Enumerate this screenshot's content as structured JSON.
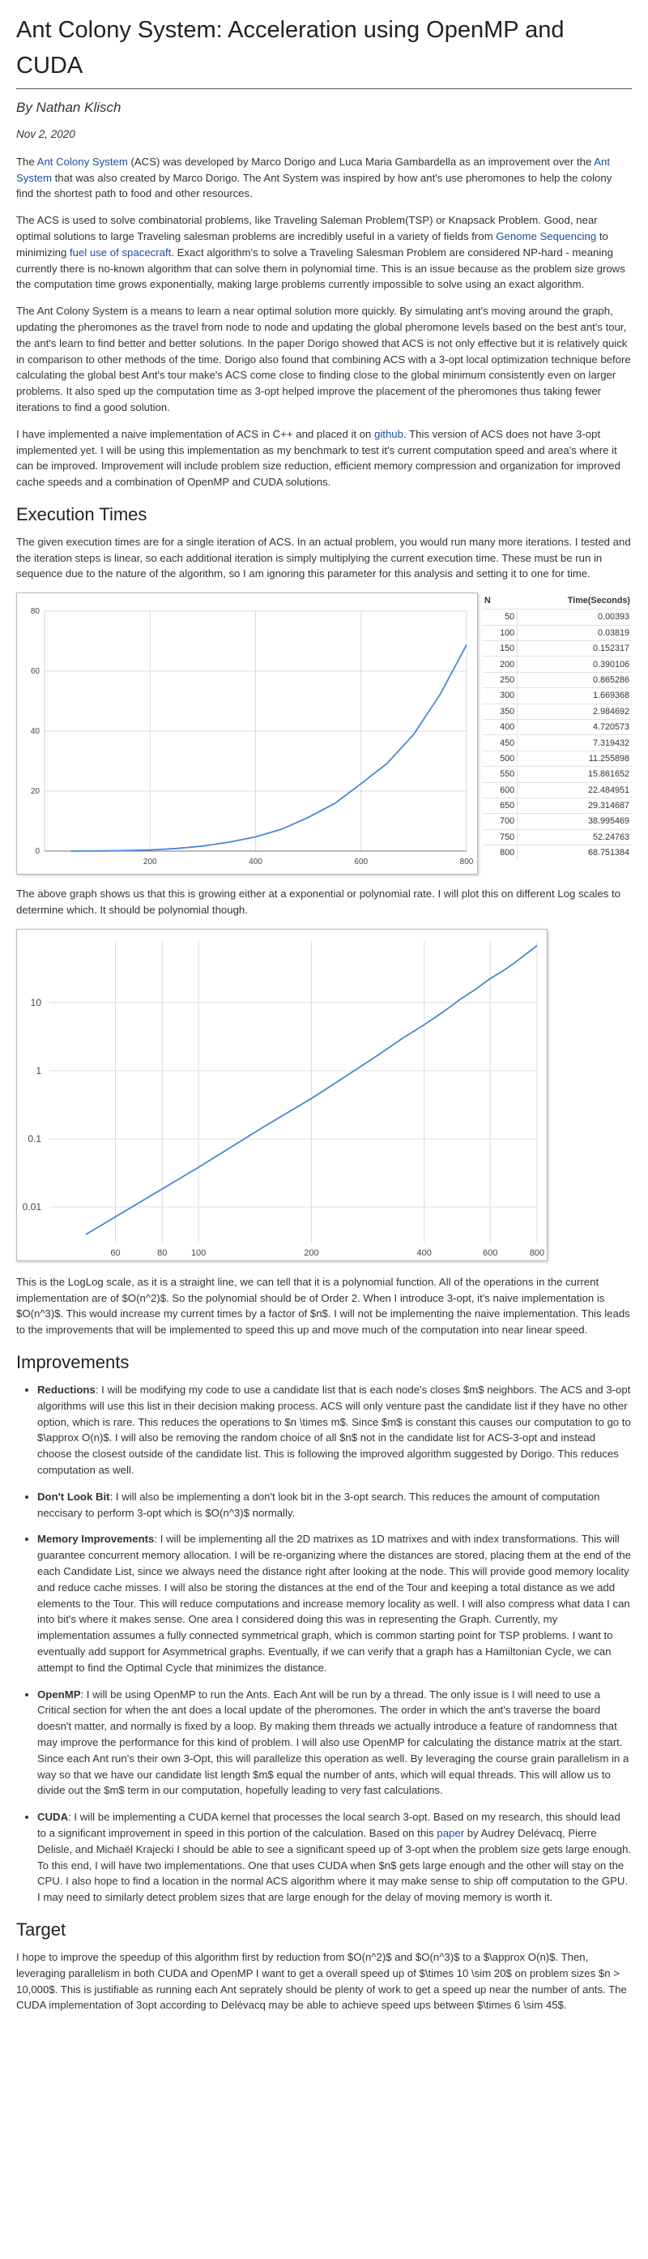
{
  "title": "Ant Colony System: Acceleration using OpenMP and CUDA",
  "author": "By Nathan Klisch",
  "date": "Nov 2, 2020",
  "intro": {
    "p1_a": "The ",
    "p1_link1": "Ant Colony System",
    "p1_b": " (ACS) was developed by Marco Dorigo and Luca Maria Gambardella as an improvement over the ",
    "p1_link2": "Ant System",
    "p1_c": " that was also created by Marco Dorigo. The Ant System was inspired by how ant's use pheromones to help the colony find the shortest path to food and other resources.",
    "p2_a": "The ACS is used to solve combinatorial problems, like Traveling Saleman Problem(TSP) or Knapsack Problem. Good, near optimal solutions to large Traveling salesman problems are incredibly useful in a variety of fields from ",
    "p2_link1": "Genome Sequencing",
    "p2_b": " to minimizing ",
    "p2_link2": "fuel use of spacecraft",
    "p2_c": ". Exact algorithm's to solve a Traveling Salesman Problem are considered NP-hard - meaning currently there is no-known algorithm that can solve them in polynomial time. This is an issue because as the problem size grows the computation time grows exponentially, making large problems currently impossible to solve using an exact algorithm.",
    "p3": "The Ant Colony System is a means to learn a near optimal solution more quickly. By simulating ant's moving around the graph, updating the pheromones as the travel from node to node and updating the global pheromone levels based on the best ant's tour, the ant's learn to find better and better solutions. In the paper Dorigo showed that ACS is not only effective but it is relatively quick in comparison to other methods of the time. Dorigo also found that combining ACS with a 3-opt local optimization technique before calculating the global best Ant's tour make's ACS come close to finding close to the global minimum consistently even on larger problems. It also sped up the computation time as 3-opt helped improve the placement of the pheromones thus taking fewer iterations to find a good solution.",
    "p4_a": "I have implemented a naive implementation of ACS in C++ and placed it on ",
    "p4_link": "github",
    "p4_b": ". This version of ACS does not have 3-opt implemented yet. I will be using this implementation as my benchmark to test it's current computation speed and area's where it can be improved. Improvement will include problem size reduction, efficient memory compression and organization for improved cache speeds and a combination of OpenMP and CUDA solutions."
  },
  "exec": {
    "heading": "Execution Times",
    "p1": "The given execution times are for a single iteration of ACS. In an actual problem, you would run many more iterations. I tested and the iteration steps is linear, so each additional iteration is simply multiplying the current execution time. These must be run in sequence due to the nature of the algorithm, so I am ignoring this parameter for this analysis and setting it to one for time.",
    "p2": "The above graph shows us that this is growing either at a exponential or polynomial rate. I will plot this on different Log scales to determine which. It should be polynomial though.",
    "p3": "This is the LogLog scale, as it is a straight line, we can tell that it is a polynomial function. All of the operations in the current implementation are of $O(n^2)$. So the polynomial should be of Order 2. When I introduce 3-opt, it's naive implementation is $O(n^3)$. This would increase my current times by a factor of $n$. I will not be implementing the naive implementation. This leads to the improvements that will be implemented to speed this up and move much of the computation into near linear speed."
  },
  "table": {
    "col_n": "N",
    "col_time": "Time(Seconds)",
    "rows": [
      {
        "n": "50",
        "t": "0.00393"
      },
      {
        "n": "100",
        "t": "0.03819"
      },
      {
        "n": "150",
        "t": "0.152317"
      },
      {
        "n": "200",
        "t": "0.390106"
      },
      {
        "n": "250",
        "t": "0.865286"
      },
      {
        "n": "300",
        "t": "1.669368"
      },
      {
        "n": "350",
        "t": "2.984692"
      },
      {
        "n": "400",
        "t": "4.720573"
      },
      {
        "n": "450",
        "t": "7.319432"
      },
      {
        "n": "500",
        "t": "11.255898"
      },
      {
        "n": "550",
        "t": "15.861652"
      },
      {
        "n": "600",
        "t": "22.484951"
      },
      {
        "n": "650",
        "t": "29.314687"
      },
      {
        "n": "700",
        "t": "38.995469"
      },
      {
        "n": "750",
        "t": "52.24763"
      },
      {
        "n": "800",
        "t": "68.751384"
      }
    ]
  },
  "chart_data": [
    {
      "type": "line",
      "x": [
        50,
        100,
        150,
        200,
        250,
        300,
        350,
        400,
        450,
        500,
        550,
        600,
        650,
        700,
        750,
        800
      ],
      "y": [
        0.00393,
        0.03819,
        0.152317,
        0.390106,
        0.865286,
        1.669368,
        2.984692,
        4.720573,
        7.319432,
        11.255898,
        15.861652,
        22.484951,
        29.314687,
        38.995469,
        52.24763,
        68.751384
      ],
      "xlim": [
        0,
        800
      ],
      "ylim": [
        0,
        80
      ],
      "xticks": [
        "200",
        "400",
        "600",
        "800"
      ],
      "yticks": [
        "0",
        "20",
        "40",
        "60",
        "80"
      ],
      "grid": true,
      "title": "",
      "xlabel": "",
      "ylabel": "",
      "line_color": "#4a86d8"
    },
    {
      "type": "line",
      "x_scale": "log",
      "y_scale": "log",
      "x": [
        50,
        100,
        150,
        200,
        250,
        300,
        350,
        400,
        450,
        500,
        550,
        600,
        650,
        700,
        750,
        800
      ],
      "y": [
        0.00393,
        0.03819,
        0.152317,
        0.390106,
        0.865286,
        1.669368,
        2.984692,
        4.720573,
        7.319432,
        11.255898,
        15.861652,
        22.484951,
        29.314687,
        38.995469,
        52.24763,
        68.751384
      ],
      "xticks": [
        "60",
        "80",
        "100",
        "200",
        "400",
        "600",
        "800"
      ],
      "yticks": [
        "0.01",
        "0.1",
        "1",
        "10"
      ],
      "grid": true,
      "title": "",
      "xlabel": "",
      "ylabel": "",
      "line_color": "#4a86d8"
    }
  ],
  "improvements": {
    "heading": "Improvements",
    "items": [
      {
        "label": "Reductions",
        "text": ": I will be modifying my code to use a candidate list that is each node's closes $m$ neighbors. The ACS and 3-opt algorithms will use this list in their decision making process. ACS will only venture past the candidate list if they have no other option, which is rare. This reduces the operations to $n \\times m$. Since $m$ is constant this causes our computation to go to $\\approx O(n)$. I will also be removing the random choice of all $n$ not in the candidate list for ACS-3-opt and instead choose the closest outside of the candidate list. This is following the improved algorithm suggested by Dorigo. This reduces computation as well."
      },
      {
        "label": "Don't Look Bit",
        "text": ": I will also be implementing a don't look bit in the 3-opt search. This reduces the amount of computation neccisary to perform 3-opt which is $O(n^3)$ normally."
      },
      {
        "label": "Memory Improvements",
        "text": ": I will be implementing all the 2D matrixes as 1D matrixes and with index transformations. This will guarantee concurrent memory allocation. I will be re-organizing where the distances are stored, placing them at the end of the each Candidate List, since we always need the distance right after looking at the node. This will provide good memory locality and reduce cache misses. I will also be storing the distances at the end of the Tour and keeping a total distance as we add elements to the Tour. This will reduce computations and increase memory locality as well. I will also compress what data I can into bit's where it makes sense. One area I considered doing this was in representing the Graph. Currently, my implementation assumes a fully connected symmetrical graph, which is common starting point for TSP problems. I want to eventually add support for Asymmetrical graphs. Eventually, if we can verify that a graph has a Hamiltonian Cycle, we can attempt to find the Optimal Cycle that minimizes the distance."
      },
      {
        "label": "OpenMP",
        "text": ": I will be using OpenMP to run the Ants. Each Ant will be run by a thread. The only issue is I will need to use a Critical section for when the ant does a local update of the pheromones. The order in which the ant's traverse the board doesn't matter, and normally is fixed by a loop. By making them threads we actually introduce a feature of randomness that may improve the performance for this kind of problem. I will also use OpenMP for calculating the distance matrix at the start. Since each Ant run's their own 3-Opt, this will parallelize this operation as well. By leveraging the course grain parallelism in a way so that we have our candidate list length $m$ equal the number of ants, which will equal threads. This will allow us to divide out the $m$ term in our computation, hopefully leading to very fast calculations."
      },
      {
        "label": "CUDA",
        "text_a": ": I will be implementing a CUDA kernel that processes the local search 3-opt. Based on my research, this should lead to a significant improvement in speed in this portion of the calculation. Based on this ",
        "link": "paper",
        "text_b": " by Audrey Delévacq, Pierre Delisle, and Michaël Krajecki I should be able to see a significant speed up of 3-opt when the problem size gets large enough. To this end, I will have two implementations. One that uses CUDA when $n$ gets large enough and the other will stay on the CPU. I also hope to find a location in the normal ACS algorithm where it may make sense to ship off computation to the GPU. I may need to similarly detect problem sizes that are large enough for the delay of moving memory is worth it."
      }
    ]
  },
  "target": {
    "heading": "Target",
    "p1": "I hope to improve the speedup of this algorithm first by reduction from $O(n^2)$ and $O(n^3)$ to a $\\approx O(n)$. Then, leveraging parallelism in both CUDA and OpenMP I want to get a overall speed up of $\\times 10 \\sim 20$ on problem sizes $n > 10,000$. This is justifiable as running each Ant seprately should be plenty of work to get a speed up near the number of ants. The CUDA implementation of 3opt according to Delévacq may be able to achieve speed ups between $\\times 6 \\sim 45$."
  }
}
